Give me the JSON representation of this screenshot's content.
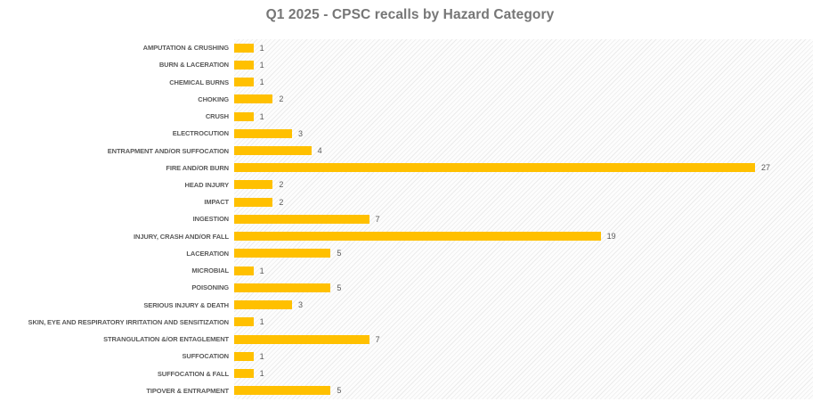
{
  "title": "Q1 2025 - CPSC recalls by Hazard Category",
  "chart_data": {
    "type": "bar",
    "orientation": "horizontal",
    "title": "Q1 2025 - CPSC recalls by Hazard Category",
    "xlabel": "",
    "ylabel": "",
    "xlim": [
      0,
      30
    ],
    "grid": false,
    "legend": false,
    "bar_color": "#FFC000",
    "label_color": "#595959",
    "title_color": "#767676",
    "plot_background": "light diagonal hatch pattern",
    "categories": [
      "AMPUTATION & CRUSHING",
      "BURN & LACERATION",
      "CHEMICAL BURNS",
      "CHOKING",
      "CRUSH",
      "ELECTROCUTION",
      "ENTRAPMENT AND/OR SUFFOCATION",
      "FIRE AND/OR BURN",
      "HEAD INJURY",
      "IMPACT",
      "INGESTION",
      "INJURY, CRASH AND/OR FALL",
      "LACERATION",
      "MICROBIAL",
      "POISONING",
      "SERIOUS INJURY & DEATH",
      "SKIN, EYE AND RESPIRATORY IRRITATION AND SENSITIZATION",
      "STRANGULATION &/OR ENTAGLEMENT",
      "SUFFOCATION",
      "SUFFOCATION & FALL",
      "TIPOVER & ENTRAPMENT"
    ],
    "values": [
      1,
      1,
      1,
      2,
      1,
      3,
      4,
      27,
      2,
      2,
      7,
      19,
      5,
      1,
      5,
      3,
      1,
      7,
      1,
      1,
      5
    ]
  }
}
